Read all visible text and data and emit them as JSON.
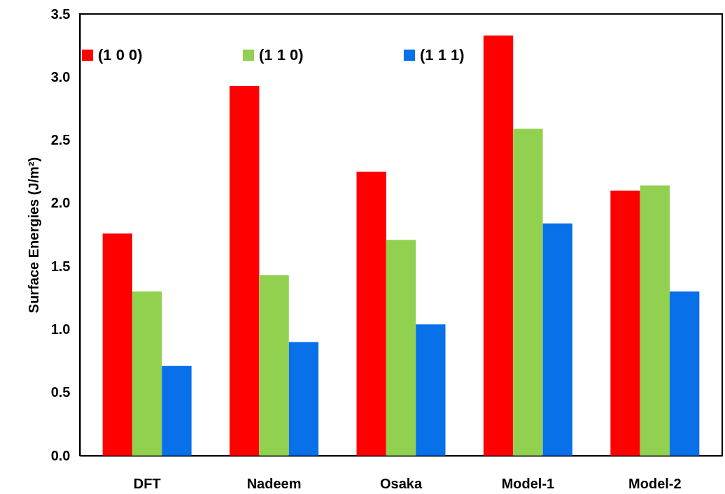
{
  "chart_data": {
    "type": "bar",
    "ylabel": "Surface Energies (J/m²)",
    "categories": [
      "DFT",
      "Nadeem",
      "Osaka",
      "Model-1",
      "Model-2"
    ],
    "series": [
      {
        "name": "(1 0 0)",
        "color": "#ff0000",
        "values": [
          1.76,
          2.93,
          2.25,
          3.33,
          2.1
        ]
      },
      {
        "name": "(1 1 0)",
        "color": "#92d050",
        "values": [
          1.3,
          1.43,
          1.71,
          2.59,
          2.14
        ]
      },
      {
        "name": "(1 1 1)",
        "color": "#0870e8",
        "values": [
          0.71,
          0.9,
          1.04,
          1.84,
          1.3
        ]
      }
    ],
    "ylim": [
      0,
      3.5
    ],
    "yticks": [
      {
        "value": 0,
        "label": "0.0"
      },
      {
        "value": 0.5,
        "label": "0.5"
      },
      {
        "value": 1,
        "label": "1.0"
      },
      {
        "value": 1.5,
        "label": "1.5"
      },
      {
        "value": 2,
        "label": "2.0"
      },
      {
        "value": 2.5,
        "label": "2.5"
      },
      {
        "value": 3,
        "label": "3.0"
      },
      {
        "value": 3.5,
        "label": "3.5"
      }
    ],
    "grid": false,
    "legend": "top"
  }
}
